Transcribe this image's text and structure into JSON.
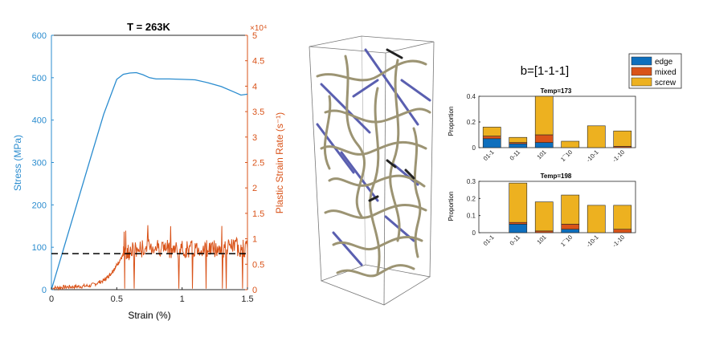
{
  "chart_data": [
    {
      "type": "line",
      "title": "T = 263K",
      "xlabel": "Strain (%)",
      "ylabel_left": "Stress (MPa)",
      "ylabel_right": "Plastic Strain Rate (s⁻¹)",
      "right_exponent": "×10⁴",
      "xlim": [
        0,
        1.5
      ],
      "ylim_left": [
        0,
        600
      ],
      "ylim_right": [
        0,
        5
      ],
      "xticks": [
        "0",
        "0.5",
        "1",
        "1.5"
      ],
      "yticks_left": [
        "0",
        "100",
        "200",
        "300",
        "400",
        "500",
        "600"
      ],
      "yticks_right": [
        "0",
        "0.5",
        "1",
        "1.5",
        "2",
        "2.5",
        "3",
        "3.5",
        "4",
        "4.5",
        "5"
      ],
      "colors": {
        "stress": "#2a8ccf",
        "rate": "#d95319",
        "ref": "#000000"
      },
      "series": [
        {
          "axis": "left",
          "x": [
            0,
            0.1,
            0.2,
            0.3,
            0.4,
            0.5,
            0.55,
            0.6,
            0.65,
            0.7,
            0.75,
            0.8,
            0.9,
            1.0,
            1.1,
            1.2,
            1.3,
            1.4,
            1.45,
            1.5
          ],
          "y": [
            0,
            104,
            207,
            311,
            414,
            496,
            508,
            511,
            512,
            507,
            500,
            497,
            497,
            496,
            495,
            488,
            479,
            466,
            459,
            461
          ]
        },
        {
          "axis": "right",
          "x": [
            0,
            0.1,
            0.2,
            0.3,
            0.4,
            0.45,
            0.5,
            0.55,
            0.6,
            0.7,
            0.8,
            0.9,
            1.0,
            1.1,
            1.2,
            1.3,
            1.4,
            1.5
          ],
          "y": [
            0.03,
            0.05,
            0.06,
            0.08,
            0.18,
            0.3,
            0.48,
            0.68,
            0.76,
            0.8,
            0.85,
            0.8,
            0.78,
            0.8,
            0.82,
            0.8,
            0.85,
            0.8
          ]
        },
        {
          "axis": "left",
          "x": [
            0,
            1.5
          ],
          "y": [
            85,
            85
          ]
        }
      ]
    },
    {
      "type": "bar",
      "suptitle": "b=[1-1-1]",
      "title": "Temp=173",
      "ylabel": "Proportion",
      "ylim": [
        0,
        0.4
      ],
      "yticks": [
        "0",
        "0.2",
        "0.4"
      ],
      "categories": [
        "01-1",
        "0-11",
        "101",
        "1¯10",
        "-10-1",
        "-1-10"
      ],
      "series": [
        {
          "name": "edge",
          "values": [
            0.07,
            0.03,
            0.04,
            0.0,
            0.0,
            0.0
          ]
        },
        {
          "name": "mixed",
          "values": [
            0.02,
            0.01,
            0.06,
            0.0,
            0.0,
            0.01
          ]
        },
        {
          "name": "screw",
          "values": [
            0.07,
            0.04,
            0.3,
            0.05,
            0.17,
            0.12
          ]
        }
      ]
    },
    {
      "type": "bar",
      "title": "Temp=198",
      "ylabel": "Proportion",
      "ylim": [
        0,
        0.3
      ],
      "yticks": [
        "0",
        "0.1",
        "0.2",
        "0.3"
      ],
      "categories": [
        "01-1",
        "0-11",
        "101",
        "1¯10",
        "-10-1",
        "-1-10"
      ],
      "series": [
        {
          "name": "edge",
          "values": [
            0.0,
            0.05,
            0.0,
            0.02,
            0.0,
            0.0
          ]
        },
        {
          "name": "mixed",
          "values": [
            0.0,
            0.01,
            0.01,
            0.03,
            0.0,
            0.02
          ]
        },
        {
          "name": "screw",
          "values": [
            0.0,
            0.23,
            0.17,
            0.17,
            0.16,
            0.14
          ]
        }
      ]
    }
  ],
  "legend": {
    "items": [
      "edge",
      "mixed",
      "screw"
    ],
    "colors": [
      "#0e6fbd",
      "#d95319",
      "#edb120"
    ]
  }
}
